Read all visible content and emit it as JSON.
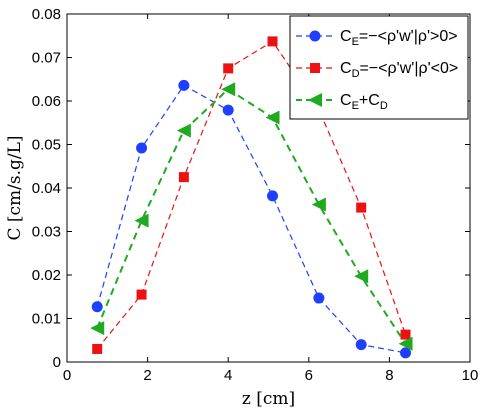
{
  "chart_data": {
    "type": "line",
    "xlabel": "z [cm]",
    "ylabel": "C [cm/s.g/L]",
    "xlim": [
      0,
      10
    ],
    "ylim": [
      0,
      0.08
    ],
    "x_ticks": [
      "0",
      "2",
      "4",
      "6",
      "8",
      "10"
    ],
    "y_ticks": [
      "0",
      "0.01",
      "0.02",
      "0.03",
      "0.04",
      "0.05",
      "0.06",
      "0.07",
      "0.08"
    ],
    "grid": false,
    "legend_position": "top-right",
    "series": [
      {
        "name": "C_E=−<ρ'w'|ρ'>0>",
        "legend_main": "C",
        "legend_sub": "E",
        "legend_rest": "=−<ρ'w'|ρ'>0>",
        "color": "#1f3fff",
        "marker": "circle",
        "x": [
          0.75,
          1.85,
          2.9,
          4.0,
          5.1,
          6.25,
          7.3,
          8.4
        ],
        "y": [
          0.0127,
          0.0492,
          0.0636,
          0.0579,
          0.0382,
          0.0147,
          0.004,
          0.0021
        ]
      },
      {
        "name": "C_D=−<ρ'w'|ρ'<0>",
        "legend_main": "C",
        "legend_sub": "D",
        "legend_rest": "=−<ρ'w'|ρ'<0>",
        "color": "#ee1111",
        "marker": "square",
        "x": [
          0.75,
          1.85,
          2.9,
          4.0,
          5.1,
          6.25,
          7.3,
          8.4
        ],
        "y": [
          0.003,
          0.0155,
          0.0425,
          0.0675,
          0.0737,
          0.058,
          0.0355,
          0.0063
        ]
      },
      {
        "name": "C_E+C_D",
        "legend_main": "C",
        "legend_sub": "E",
        "legend_rest": "+C",
        "legend_sub2": "D",
        "color": "#1faa1f",
        "marker": "triangle-left",
        "x": [
          0.75,
          1.85,
          2.9,
          4.0,
          5.1,
          6.25,
          7.3,
          8.4
        ],
        "y": [
          0.0078,
          0.0325,
          0.0532,
          0.0627,
          0.0562,
          0.0362,
          0.0197,
          0.0042
        ]
      }
    ]
  }
}
